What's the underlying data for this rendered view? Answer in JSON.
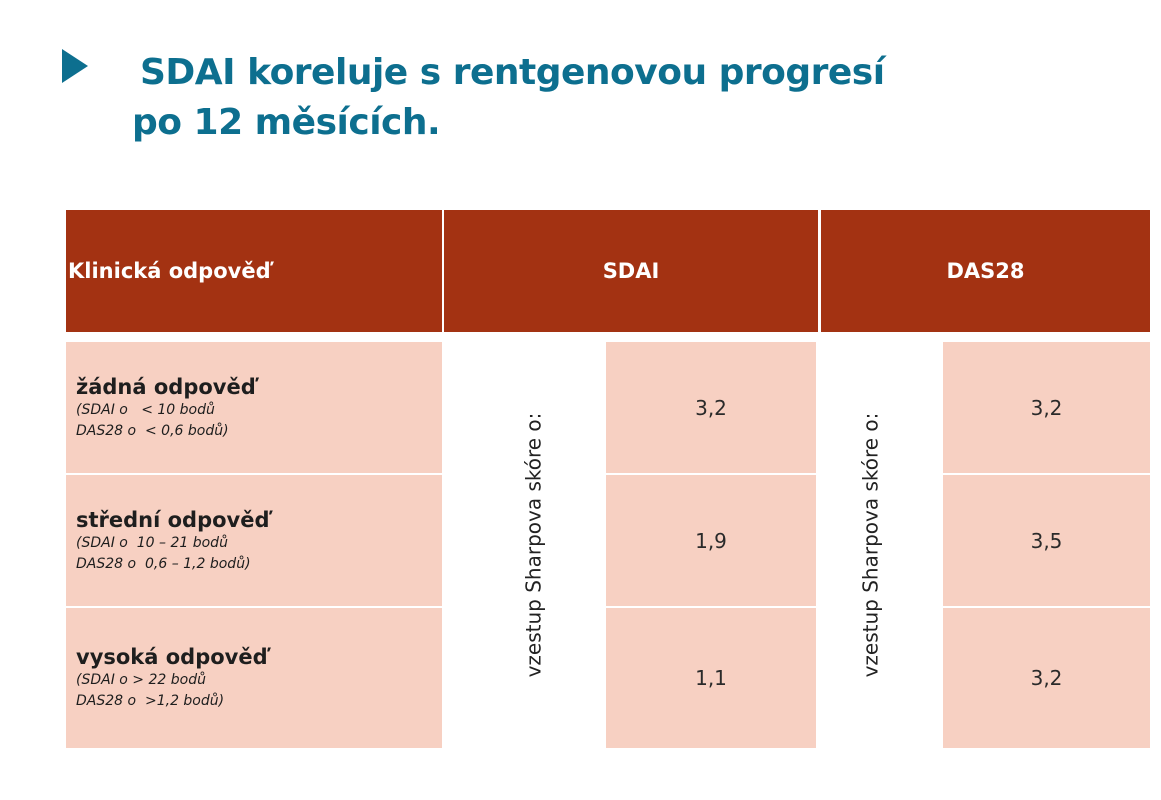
{
  "slide": {
    "title_line1": "SDAI koreluje s rentgenovou progresí",
    "title_line2": "po 12 měsících.",
    "bullet_icon": "triangle-bullet-icon",
    "accent_color": "#0d6f8f"
  },
  "table": {
    "header_color": "#a33212",
    "row_color": "#f7d0c2",
    "headers": [
      "Klinická odpověď",
      "SDAI",
      "DAS28"
    ],
    "vertical_label": "vzestup Sharpova skóre o:",
    "rows": [
      {
        "name": "žádná odpověď",
        "note": "(SDAI o   < 10 bodů\nDAS28 o  < 0,6 bodů)",
        "sdai": "3,2",
        "das28": "3,2"
      },
      {
        "name": "střední odpověď",
        "note": "(SDAI o  10 – 21 bodů\nDAS28 o  0,6 – 1,2 bodů)",
        "sdai": "1,9",
        "das28": "3,5"
      },
      {
        "name": "vysoká odpověď",
        "note": "(SDAI o > 22 bodů\nDAS28 o  >1,2 bodů)",
        "sdai": "1,1",
        "das28": "3,2"
      }
    ]
  }
}
